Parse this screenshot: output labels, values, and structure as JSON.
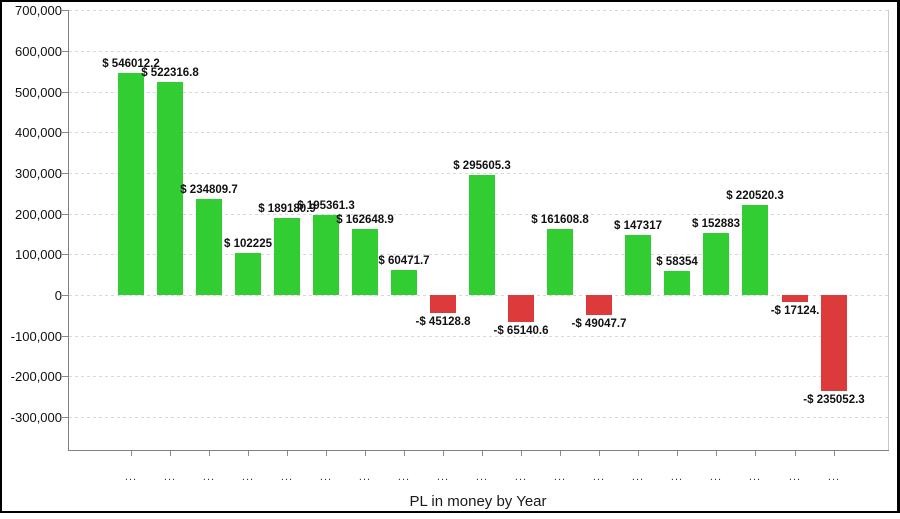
{
  "chart_data": {
    "type": "bar",
    "title": "PL in money by Year",
    "categories": [
      "...",
      "...",
      "...",
      "...",
      "...",
      "...",
      "...",
      "...",
      "...",
      "...",
      "...",
      "...",
      "...",
      "...",
      "...",
      "...",
      "...",
      "...",
      "..."
    ],
    "values": [
      546012.2,
      522316.8,
      234809.7,
      102225,
      189180.9,
      195361.3,
      162648.9,
      60471.7,
      -45128.8,
      295605.3,
      -65140.6,
      161608.8,
      -49047.7,
      147317,
      58354,
      152883,
      220520.3,
      -17124,
      -235052.3
    ],
    "bar_labels": [
      "$ 546012.2",
      "$ 522316.8",
      "$ 234809.7",
      "$ 102225",
      "$ 189180.9",
      "$ 195361.3",
      "$ 162648.9",
      "$ 60471.7",
      "-$ 45128.8",
      "$ 295605.3",
      "-$ 65140.6",
      "$ 161608.8",
      "-$ 49047.7",
      "$ 147317",
      "$ 58354",
      "$ 152883",
      "$ 220520.3",
      "-$ 17124.",
      "-$ 235052.3"
    ],
    "y_tick_labels": [
      "700,000",
      "600,000",
      "500,000",
      "400,000",
      "300,000",
      "200,000",
      "100,000",
      "0",
      "-100,000",
      "-200,000",
      "-300,000"
    ],
    "y_tick_values": [
      700000,
      600000,
      500000,
      400000,
      300000,
      200000,
      100000,
      0,
      -100000,
      -200000,
      -300000
    ],
    "ylim": [
      -300000,
      700000
    ],
    "grid": "horizontal-dashed",
    "legend": "none",
    "positive_color": "#32CD32",
    "negative_color": "#DD3B3B",
    "axis_color": "#808080",
    "label_color": "#111111"
  }
}
